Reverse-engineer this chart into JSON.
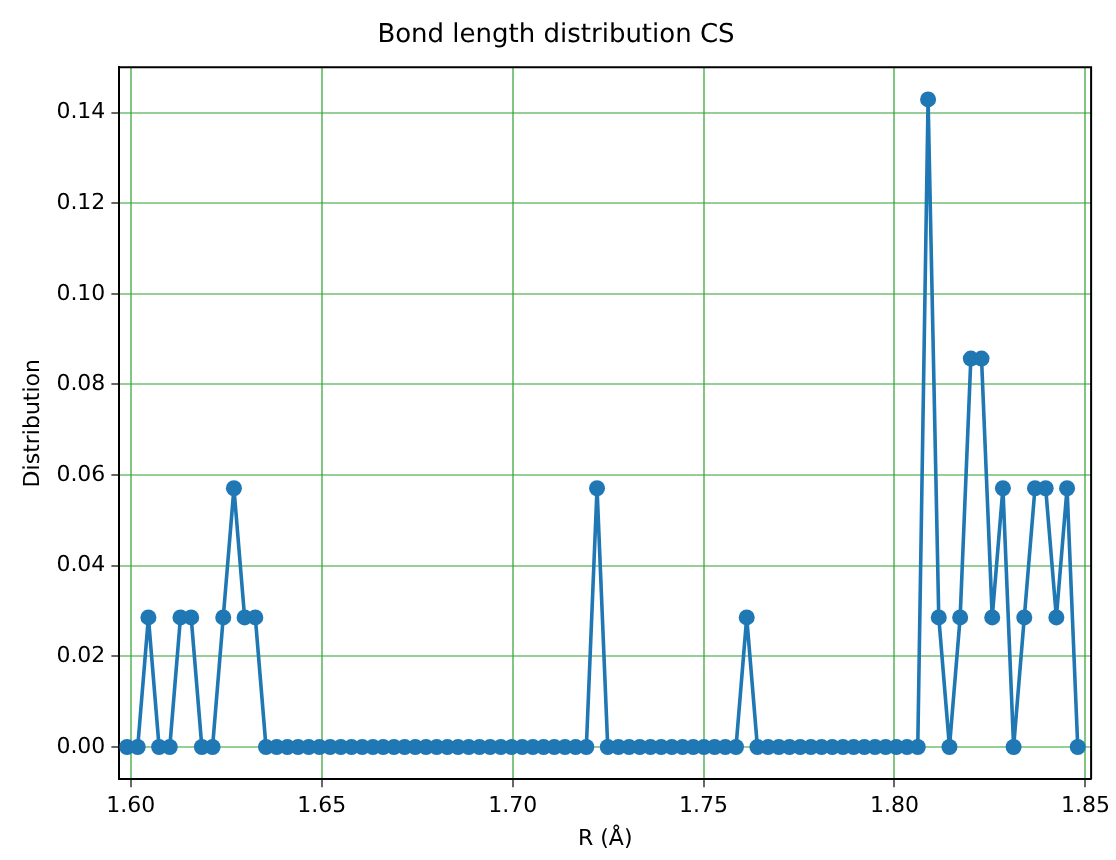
{
  "chart_data": {
    "type": "line",
    "title": "Bond length distribution CS",
    "xlabel": "R (Å)",
    "ylabel": "Distribution",
    "x": [
      1.599,
      1.6018,
      1.6046,
      1.6074,
      1.6102,
      1.613,
      1.6158,
      1.6186,
      1.6214,
      1.6242,
      1.627,
      1.6298,
      1.6326,
      1.6354,
      1.6382,
      1.641,
      1.6438,
      1.6466,
      1.6494,
      1.6522,
      1.655,
      1.6578,
      1.6606,
      1.6634,
      1.6661,
      1.6689,
      1.6717,
      1.6745,
      1.6773,
      1.6801,
      1.6829,
      1.6857,
      1.6885,
      1.6913,
      1.6941,
      1.6969,
      1.6997,
      1.7025,
      1.7053,
      1.7081,
      1.7109,
      1.7137,
      1.7165,
      1.7193,
      1.7221,
      1.7249,
      1.7277,
      1.7305,
      1.7333,
      1.7361,
      1.7389,
      1.7417,
      1.7445,
      1.7473,
      1.7501,
      1.7529,
      1.7557,
      1.7585,
      1.7613,
      1.7641,
      1.7669,
      1.7697,
      1.7725,
      1.7753,
      1.7781,
      1.7809,
      1.7837,
      1.7865,
      1.7893,
      1.7921,
      1.7949,
      1.7977,
      1.8005,
      1.8033,
      1.8061,
      1.8088,
      1.8116,
      1.8144,
      1.8172,
      1.82,
      1.8228,
      1.8256,
      1.8284,
      1.8312,
      1.834,
      1.8368,
      1.8396,
      1.8424,
      1.8452,
      1.848
    ],
    "series": [
      {
        "color": "#1f77b4",
        "values": [
          0,
          0,
          0.0286,
          0,
          0,
          0.0286,
          0.0286,
          0,
          0,
          0.0286,
          0.0571,
          0.0286,
          0.0286,
          0,
          0,
          0,
          0,
          0,
          0,
          0,
          0,
          0,
          0,
          0,
          0,
          0,
          0,
          0,
          0,
          0,
          0,
          0,
          0,
          0,
          0,
          0,
          0,
          0,
          0,
          0,
          0,
          0,
          0,
          0,
          0.0571,
          0,
          0,
          0,
          0,
          0,
          0,
          0,
          0,
          0,
          0,
          0,
          0,
          0,
          0.0286,
          0,
          0,
          0,
          0,
          0,
          0,
          0,
          0,
          0,
          0,
          0,
          0,
          0,
          0,
          0,
          0,
          0.1429,
          0.0286,
          0,
          0.0286,
          0.0857,
          0.0857,
          0.0286,
          0.0571,
          0,
          0.0286,
          0.0571,
          0.0571,
          0.0286,
          0.0571,
          0
        ]
      }
    ],
    "xlim": [
      1.597,
      1.8515
    ],
    "xticks": [
      {
        "value": 1.6,
        "label": "1.60"
      },
      1.65,
      {
        "value": 1.7,
        "label": "1.70"
      },
      1.75,
      {
        "value": 1.8,
        "label": "1.80"
      },
      1.85
    ],
    "ylim": [
      -0.0071,
      0.15
    ],
    "yticks": [
      {
        "value": 0,
        "label": "0.00"
      },
      {
        "value": 0.02,
        "label": "0.02"
      },
      {
        "value": 0.04,
        "label": "0.04"
      },
      {
        "value": 0.06,
        "label": "0.06"
      },
      {
        "value": 0.08,
        "label": "0.08"
      },
      {
        "value": 0.1,
        "label": "0.10"
      },
      {
        "value": 0.12,
        "label": "0.12"
      },
      {
        "value": 0.14,
        "label": "0.14"
      }
    ],
    "grid": true,
    "marker": "circle",
    "line_style": "solid",
    "legend": false
  }
}
